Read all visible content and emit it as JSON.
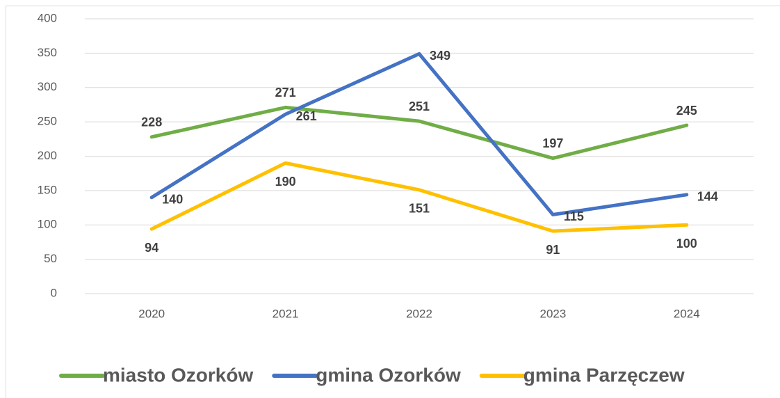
{
  "chart_data": {
    "type": "line",
    "categories": [
      "2020",
      "2021",
      "2022",
      "2023",
      "2024"
    ],
    "series": [
      {
        "name": "miasto Ozorków",
        "color": "#70ad47",
        "values": [
          228,
          271,
          251,
          197,
          245
        ]
      },
      {
        "name": "gmina Ozorków",
        "color": "#4472c4",
        "values": [
          140,
          261,
          349,
          115,
          144
        ]
      },
      {
        "name": "gmina Parzęczew",
        "color": "#ffc000",
        "values": [
          94,
          190,
          151,
          91,
          100
        ]
      }
    ],
    "ylim": [
      0,
      400
    ],
    "yticks": [
      0,
      50,
      100,
      150,
      200,
      250,
      300,
      350,
      400
    ],
    "grid": true,
    "legend": "bottom"
  }
}
